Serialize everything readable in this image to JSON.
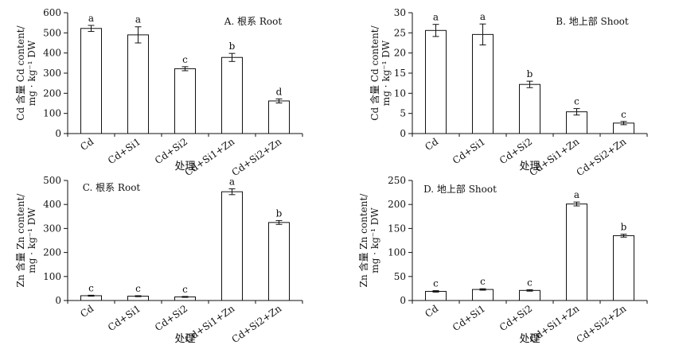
{
  "chart_data": [
    {
      "type": "bar",
      "title": "A. 根系 Root",
      "ylabel_lines": [
        "Cd 含量 Cd content/",
        "mg · kg⁻¹ DW"
      ],
      "xlabel": "处理",
      "categories": [
        "Cd",
        "Cd+Si1",
        "Cd+Si2",
        "Cd+Si1+Zn",
        "Cd+Si2+Zn"
      ],
      "values": [
        522,
        490,
        322,
        378,
        162
      ],
      "errors": [
        15,
        40,
        10,
        20,
        10
      ],
      "letters": [
        "a",
        "a",
        "c",
        "b",
        "d"
      ],
      "ylim": [
        0,
        600
      ],
      "yticks": [
        0,
        100,
        200,
        300,
        400,
        500,
        600
      ],
      "ytick_labels": [
        "0",
        "100",
        "200",
        "300",
        "400",
        "500",
        "600"
      ]
    },
    {
      "type": "bar",
      "title": "B. 地上部 Shoot",
      "ylabel_lines": [
        "Cd 含量 Cd content/",
        "mg · kg⁻¹ DW"
      ],
      "xlabel": "处理",
      "categories": [
        "Cd",
        "Cd+Si1",
        "Cd+Si2",
        "Cd+Si1+Zn",
        "Cd+Si2+Zn"
      ],
      "values": [
        25.6,
        24.6,
        12.2,
        5.4,
        2.6
      ],
      "errors": [
        1.5,
        2.6,
        0.8,
        0.8,
        0.4
      ],
      "letters": [
        "a",
        "a",
        "b",
        "c",
        "c"
      ],
      "ylim": [
        0,
        30
      ],
      "yticks": [
        0,
        5,
        10,
        15,
        20,
        25,
        30
      ],
      "ytick_labels": [
        "0",
        "5",
        "10",
        "15",
        "20",
        "25",
        "30"
      ]
    },
    {
      "type": "bar",
      "title": "C. 根系 Root",
      "ylabel_lines": [
        "Zn 含量 Zn content/",
        "mg · kg⁻¹ DW"
      ],
      "xlabel": "处理",
      "categories": [
        "Cd",
        "Cd+Si1",
        "Cd+Si2",
        "Cd+Si1+Zn",
        "Cd+Si2+Zn"
      ],
      "values": [
        20,
        18,
        15,
        453,
        325
      ],
      "errors": [
        2,
        2,
        2,
        12,
        8
      ],
      "letters": [
        "c",
        "c",
        "c",
        "a",
        "b"
      ],
      "ylim": [
        0,
        500
      ],
      "yticks": [
        0,
        100,
        200,
        300,
        400,
        500
      ],
      "ytick_labels": [
        "0",
        "100",
        "200",
        "300",
        "400",
        "500"
      ]
    },
    {
      "type": "bar",
      "title": "D. 地上部 Shoot",
      "ylabel_lines": [
        "Zn 含量 Zn content/",
        "mg · kg⁻¹ DW"
      ],
      "xlabel": "处理",
      "categories": [
        "Cd",
        "Cd+Si1",
        "Cd+Si2",
        "Cd+Si1+Zn",
        "Cd+Si2+Zn"
      ],
      "values": [
        19,
        23,
        21,
        201,
        135
      ],
      "errors": [
        1.5,
        1.5,
        1.5,
        4,
        3
      ],
      "letters": [
        "c",
        "c",
        "c",
        "a",
        "b"
      ],
      "ylim": [
        0,
        250
      ],
      "yticks": [
        0,
        50,
        100,
        150,
        200,
        250
      ],
      "ytick_labels": [
        "0",
        "50",
        "100",
        "150",
        "200",
        "250"
      ]
    }
  ]
}
